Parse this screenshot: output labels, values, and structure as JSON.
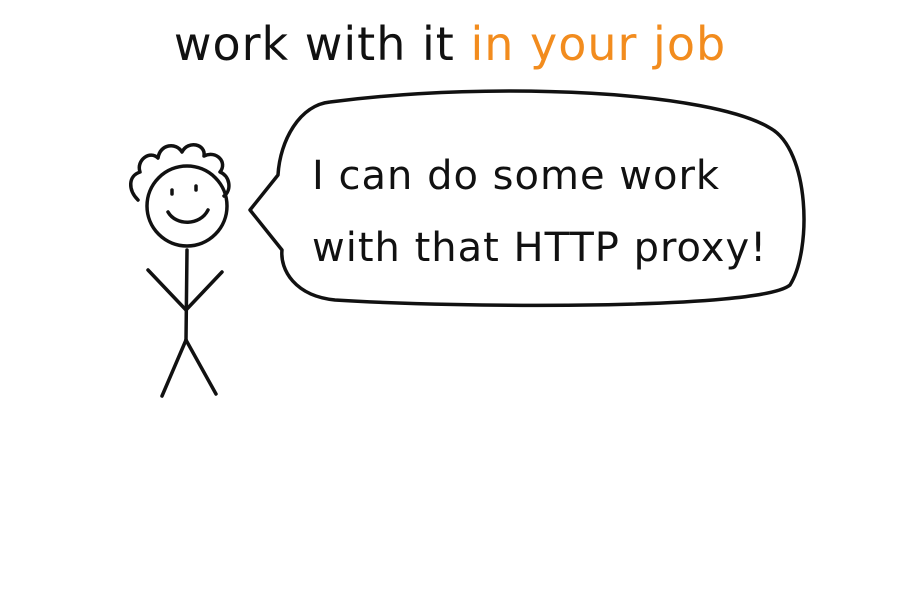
{
  "title": {
    "text_main": "work with it",
    "text_accent": "in your job",
    "accent_color": "#f28c1e"
  },
  "speech_bubble": {
    "line1": "I can do some work",
    "line2": "with that HTTP proxy!"
  },
  "figure": {
    "icon": "stick-figure-icon"
  }
}
